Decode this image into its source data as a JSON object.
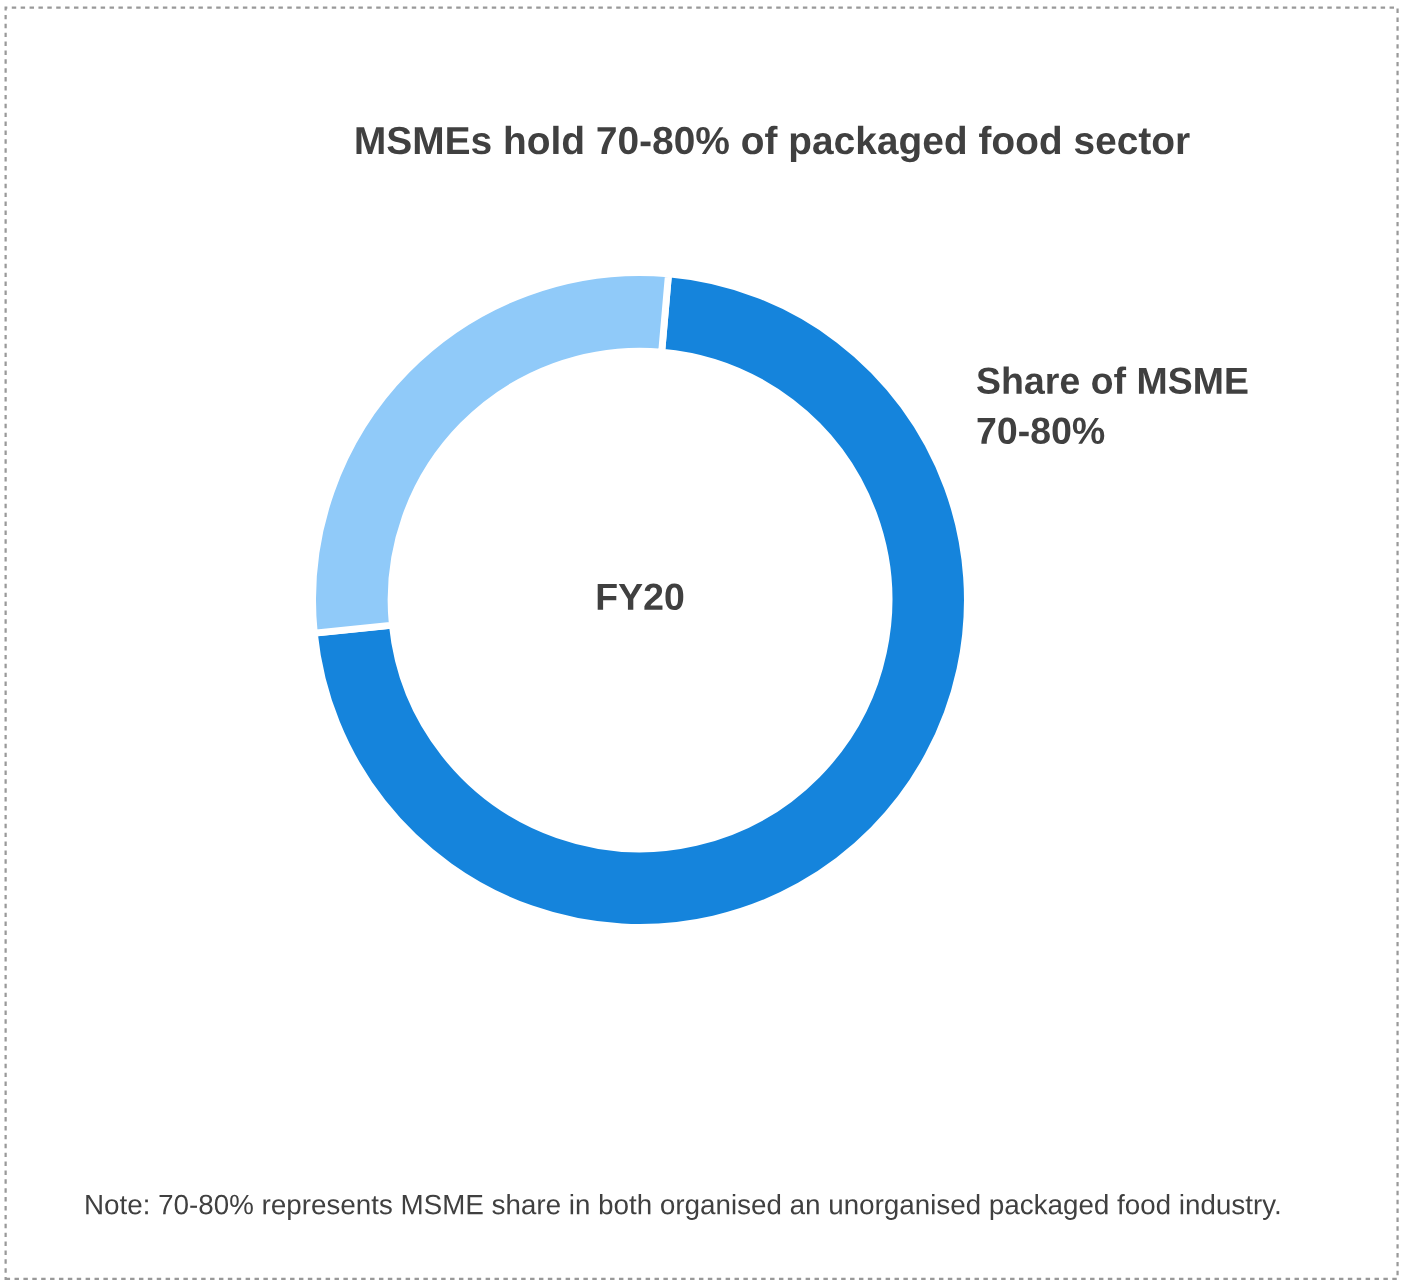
{
  "chart_data": {
    "type": "donut",
    "title": "MSMEs hold 70-80% of packaged food sector",
    "categories": [
      "Share of MSME",
      null
    ],
    "values": [
      72,
      28
    ],
    "colors": [
      "#1584dc",
      "#90caf9"
    ],
    "annotations": [
      "FY20",
      "70-80%",
      "Note: 70-80% represents MSME share in both organised an unorganised packaged food industry."
    ]
  }
}
